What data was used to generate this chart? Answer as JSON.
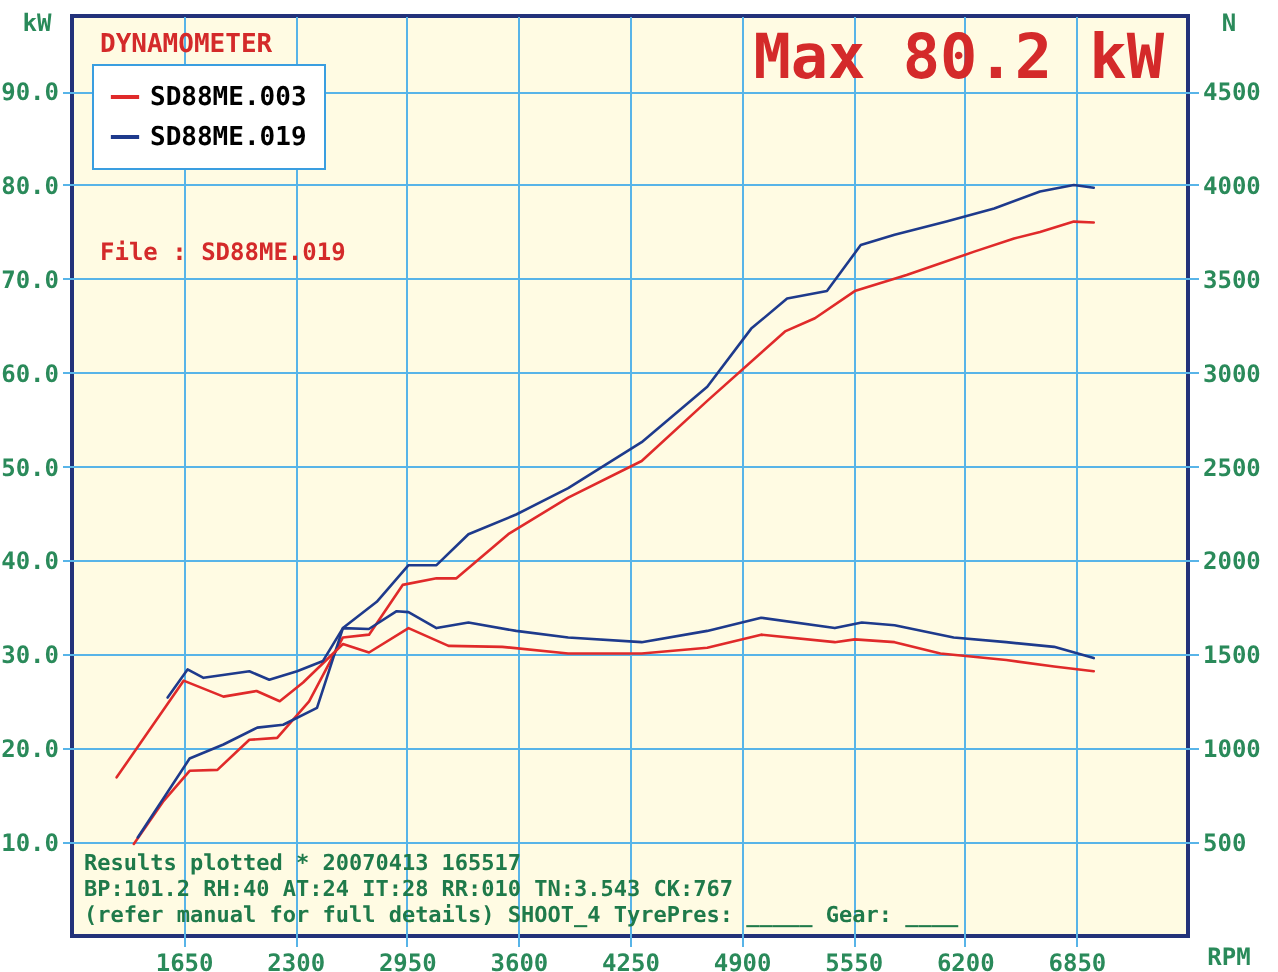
{
  "chart_data": {
    "type": "line",
    "title": "DYNAMOMETER",
    "xlabel": "RPM",
    "ylabel": "kW",
    "y2label": "N",
    "xlim": [
      1000,
      7500
    ],
    "xticks": [
      1650,
      2300,
      2950,
      3600,
      4250,
      4900,
      5550,
      6200,
      6850
    ],
    "ylim": [
      0,
      98
    ],
    "yticks": [
      {
        "value": 10,
        "label": "10.0"
      },
      {
        "value": 20,
        "label": "20.0"
      },
      {
        "value": 30,
        "label": "30.0"
      },
      {
        "value": 40,
        "label": "40.0"
      },
      {
        "value": 50,
        "label": "50.0"
      },
      {
        "value": 60,
        "label": "60.0"
      },
      {
        "value": 70,
        "label": "70.0"
      },
      {
        "value": 80,
        "label": "80.0"
      },
      {
        "value": 90,
        "label": "90.0"
      }
    ],
    "y2lim": [
      0,
      4900
    ],
    "y2ticks": [
      500,
      1000,
      1500,
      2000,
      2500,
      3000,
      3500,
      4000,
      4500
    ],
    "grid": true,
    "legend": "top left",
    "annotations": [
      "Max 80.2 kW",
      "File   : SD88ME.019",
      "Results plotted * 20070413 165517",
      "BP:101.2 RH:40 AT:24 IT:28  RR:010 TN:3.543 CK:767",
      "(refer manual for full details) SHOOT_4  TyrePres: _____  Gear: ____"
    ],
    "series": [
      {
        "name": "SD88ME.003",
        "color": "#e02a2a",
        "x": [
          1360,
          1534,
          1685,
          1847,
          2033,
          2195,
          2381,
          2578,
          2730,
          2926,
          3123,
          3239,
          3541,
          3890,
          4318,
          4700,
          5153,
          5327,
          5559,
          5861,
          6255,
          6487,
          6638,
          6835,
          6951
        ],
        "values": [
          9.8,
          14.4,
          17.6,
          17.7,
          20.9,
          21.1,
          25.0,
          31.8,
          32.1,
          37.4,
          38.1,
          38.1,
          42.8,
          46.7,
          50.6,
          57.0,
          64.4,
          65.8,
          68.7,
          70.4,
          72.9,
          74.3,
          75.0,
          76.1,
          76.0
        ]
      },
      {
        "name": "SD88ME.019",
        "color": "#1e3a8c",
        "x": [
          1383,
          1685,
          1882,
          2079,
          2230,
          2427,
          2578,
          2775,
          2960,
          3123,
          3309,
          3587,
          3890,
          4318,
          4700,
          4956,
          5165,
          5397,
          5594,
          5791,
          6093,
          6371,
          6638,
          6835,
          6951
        ],
        "values": [
          10.5,
          18.9,
          20.4,
          22.2,
          22.5,
          24.3,
          32.8,
          35.6,
          39.5,
          39.5,
          42.8,
          44.9,
          47.7,
          52.6,
          58.5,
          64.7,
          67.9,
          68.7,
          73.6,
          74.7,
          76.1,
          77.5,
          79.3,
          80.0,
          79.7
        ]
      },
      {
        "color": "#e02a2a",
        "axis": "y2",
        "x": [
          1260,
          1650,
          1882,
          2075,
          2210,
          2346,
          2578,
          2730,
          2960,
          3193,
          3506,
          3890,
          4318,
          4700,
          5014,
          5443,
          5559,
          5791,
          6058,
          6441,
          6720,
          6951
        ],
        "values": [
          845,
          1360,
          1275,
          1305,
          1250,
          1350,
          1555,
          1510,
          1640,
          1545,
          1540,
          1505,
          1505,
          1535,
          1605,
          1565,
          1580,
          1565,
          1505,
          1470,
          1435,
          1410
        ]
      },
      {
        "color": "#1e3a8c",
        "axis": "y2",
        "x": [
          1557,
          1673,
          1766,
          2033,
          2149,
          2311,
          2462,
          2578,
          2729,
          2891,
          2960,
          3123,
          3309,
          3587,
          3890,
          4318,
          4700,
          5014,
          5443,
          5600,
          5791,
          6135,
          6441,
          6720,
          6951
        ],
        "values": [
          1270,
          1420,
          1375,
          1410,
          1365,
          1410,
          1465,
          1640,
          1635,
          1730,
          1725,
          1640,
          1670,
          1625,
          1590,
          1565,
          1625,
          1695,
          1640,
          1670,
          1655,
          1590,
          1565,
          1540,
          1480
        ]
      }
    ]
  }
}
